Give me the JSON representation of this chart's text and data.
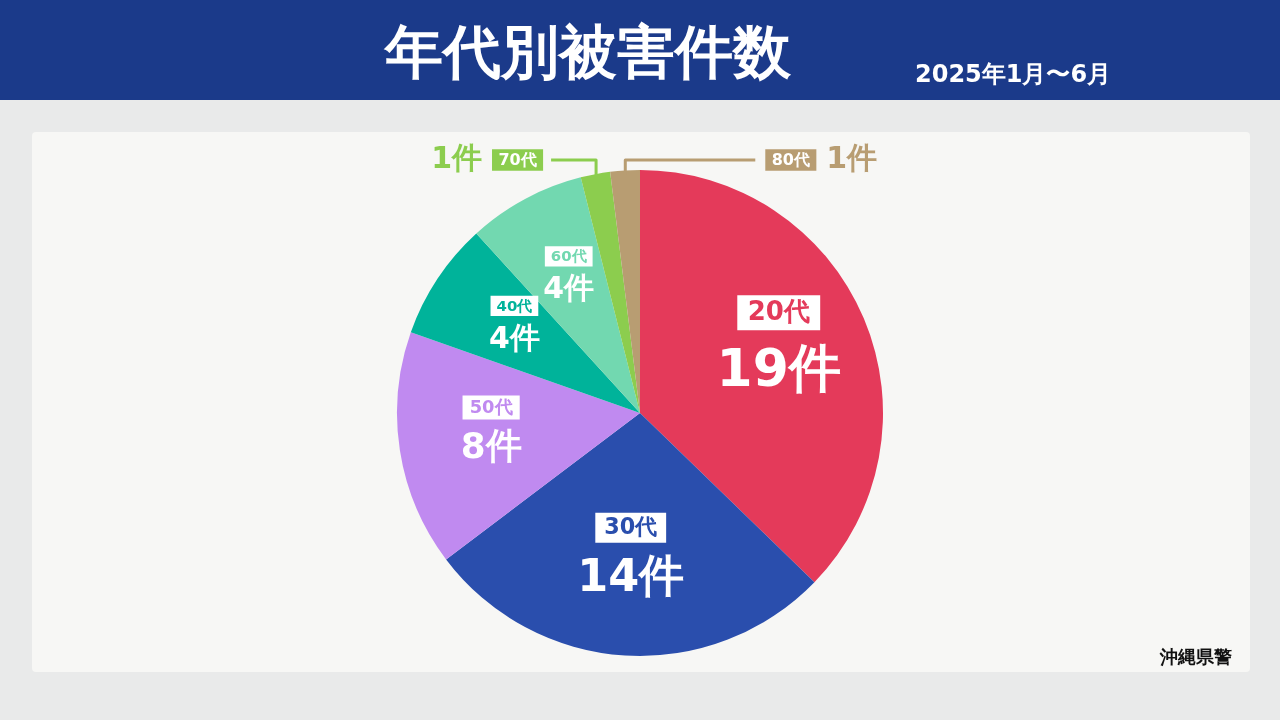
{
  "chart_data": {
    "type": "pie",
    "title": "年代別被害件数",
    "subtitle": "2025年1月〜6月",
    "categories": [
      "20代",
      "30代",
      "50代",
      "40代",
      "60代",
      "70代",
      "80代"
    ],
    "values": [
      19,
      14,
      8,
      4,
      4,
      1,
      1
    ],
    "colors": [
      "#e43a5a",
      "#2a4ead",
      "#c08af0",
      "#00b39a",
      "#72d8b0",
      "#8ccd4e",
      "#b89d72"
    ],
    "value_labels": [
      "19件",
      "14件",
      "8件",
      "4件",
      "4件",
      "1件",
      "1件"
    ],
    "legend": false,
    "annotations": [
      "沖縄県警"
    ]
  }
}
